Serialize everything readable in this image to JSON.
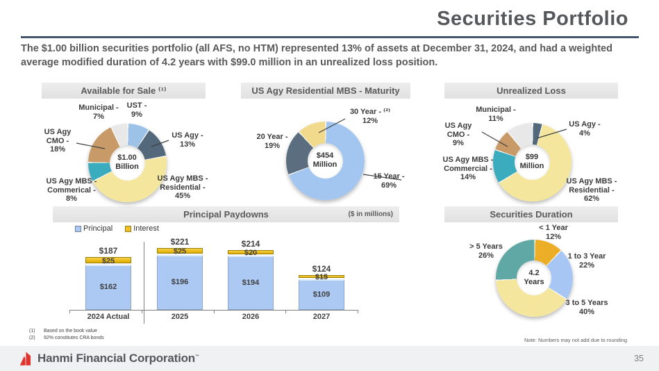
{
  "slide": {
    "title": "Securities Portfolio",
    "intro": "The $1.00 billion securities portfolio (all AFS, no HTM) represented 13% of assets at December 31, 2024, and had a weighted average modified duration of 4.2 years with $99.0 million in an unrealized loss position.",
    "footnotes": [
      {
        "num": "(1)",
        "text": "Based on the book value"
      },
      {
        "num": "(2)",
        "text": "92% constitutes CRA bonds"
      }
    ],
    "rounding_note": "Note: Numbers may not add due to rounding",
    "footer": {
      "brand": "Hanmi Financial Corporation",
      "trademark": "™",
      "page_number": "35"
    }
  },
  "chart_data": [
    {
      "id": "available-for-sale",
      "type": "pie",
      "title": "Available for Sale ⁽¹⁾",
      "center_label": [
        "$1.00",
        "Billion"
      ],
      "segments": [
        {
          "name": "UST",
          "pct": 9,
          "color": "#9cc2e8",
          "label_lines": [
            "UST -",
            "9%"
          ]
        },
        {
          "name": "US Agy",
          "pct": 13,
          "color": "#54687b",
          "label_lines": [
            "US Agy -",
            "13%"
          ]
        },
        {
          "name": "US Agy MBS - Residential",
          "pct": 45,
          "color": "#f4e69d",
          "label_lines": [
            "US Agy MBS -",
            "Residential -",
            "45%"
          ]
        },
        {
          "name": "US Agy MBS - Commerical",
          "pct": 8,
          "color": "#3bacbe",
          "label_lines": [
            "US Agy MBS -",
            "Commerical -",
            "8%"
          ]
        },
        {
          "name": "US Agy CMO",
          "pct": 18,
          "color": "#c79a68",
          "label_lines": [
            "US Agy",
            "CMO -",
            "18%"
          ]
        },
        {
          "name": "Municipal",
          "pct": 7,
          "color": "#e8e8e8",
          "label_lines": [
            "Municipal -",
            "7%"
          ]
        }
      ]
    },
    {
      "id": "us-agy-residential-mbs-maturity",
      "type": "pie",
      "title": "US Agy Residential MBS - Maturity",
      "center_label": [
        "$454",
        "Million"
      ],
      "segments": [
        {
          "name": "15 Year",
          "pct": 69,
          "color": "#a3c6f0",
          "label_lines": [
            "15 Year -",
            "69%"
          ]
        },
        {
          "name": "20 Year",
          "pct": 19,
          "color": "#5b6e80",
          "label_lines": [
            "20 Year -",
            "19%"
          ]
        },
        {
          "name": "30 Year",
          "pct": 12,
          "color": "#f1da8c",
          "label_lines": [
            "30 Year - ⁽²⁾",
            "12%"
          ]
        }
      ]
    },
    {
      "id": "unrealized-loss",
      "type": "pie",
      "title": "Unrealized Loss",
      "center_label": [
        "$99",
        "Million"
      ],
      "segments": [
        {
          "name": "US Agy",
          "pct": 4,
          "color": "#54687b",
          "label_lines": [
            "US Agy -",
            "4%"
          ]
        },
        {
          "name": "US Agy MBS - Residential",
          "pct": 62,
          "color": "#f4e69d",
          "label_lines": [
            "US Agy MBS -",
            "Residential -",
            "62%"
          ]
        },
        {
          "name": "US Agy MBS - Commercial",
          "pct": 14,
          "color": "#3bacbe",
          "label_lines": [
            "US Agy MBS -",
            "Commercial -",
            "14%"
          ]
        },
        {
          "name": "US Agy CMO",
          "pct": 9,
          "color": "#c79a68",
          "label_lines": [
            "US Agy",
            "CMO -",
            "9%"
          ]
        },
        {
          "name": "Municipal",
          "pct": 11,
          "color": "#e8e8e8",
          "label_lines": [
            "Municipal -",
            "11%"
          ]
        }
      ]
    },
    {
      "id": "principal-paydowns",
      "type": "bar",
      "title": "Principal Paydowns",
      "unit_note": "($ in millions)",
      "categories": [
        "2024 Actual",
        "2025",
        "2026",
        "2027"
      ],
      "series": [
        {
          "name": "Principal",
          "color": "#abc9f3",
          "border": "#8ca6c9",
          "values": [
            162,
            196,
            194,
            109
          ]
        },
        {
          "name": "Interest",
          "color": "#efc125",
          "border": "#9c7e00",
          "values": [
            25,
            25,
            20,
            15
          ]
        }
      ],
      "totals": [
        187,
        221,
        214,
        124
      ]
    },
    {
      "id": "securities-duration",
      "type": "pie",
      "title": "Securities Duration",
      "center_label": [
        "4.2",
        "Years"
      ],
      "segments": [
        {
          "name": "< 1 Year",
          "pct": 12,
          "color": "#ecae26",
          "label_lines": [
            "< 1 Year",
            "12%"
          ]
        },
        {
          "name": "1 to 3 Year",
          "pct": 22,
          "color": "#a8c6f3",
          "label_lines": [
            "1 to 3 Year",
            "22%"
          ]
        },
        {
          "name": "3 to 5 Years",
          "pct": 40,
          "color": "#f4e69d",
          "label_lines": [
            "3 to 5 Years",
            "40%"
          ]
        },
        {
          "name": "> 5 Years",
          "pct": 26,
          "color": "#60a8a6",
          "label_lines": [
            "> 5 Years",
            "26%"
          ]
        }
      ]
    }
  ]
}
